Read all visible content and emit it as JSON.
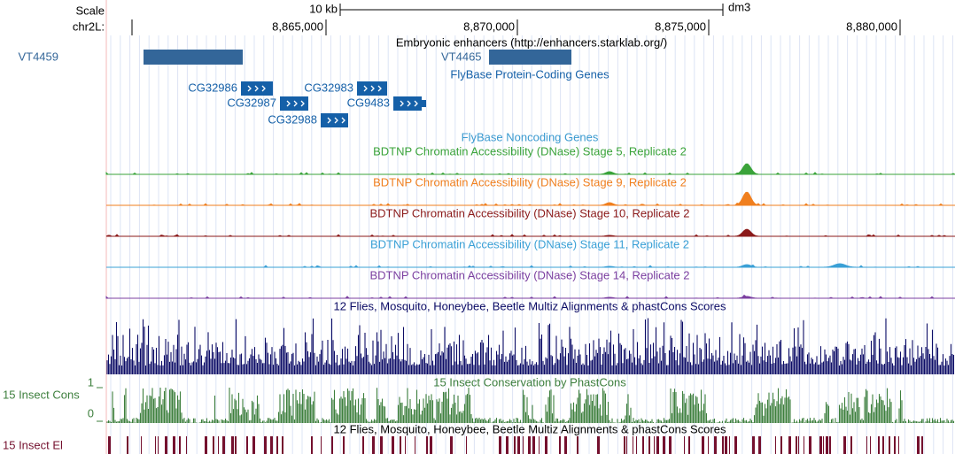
{
  "header": {
    "scale_label": "Scale",
    "scale_bar": "10 kb",
    "assembly": "dm3",
    "chrom": "chr2L:",
    "ticks": [
      {
        "value": 8865000,
        "label": "8,865,000"
      },
      {
        "value": 8870000,
        "label": "8,870,000"
      },
      {
        "value": 8875000,
        "label": "8,875,000"
      },
      {
        "value": 8880000,
        "label": "8,880,000"
      }
    ]
  },
  "tracks": {
    "enhancers": {
      "title": "Embryonic enhancers (http://enhancers.starklab.org/)",
      "color": "#336699",
      "items": [
        "VT4459",
        "VT4465"
      ]
    },
    "genes": {
      "title": "FlyBase Protein-Coding Genes",
      "color": "#1560a8",
      "items": [
        "CG32986",
        "CG32987",
        "CG32983",
        "CG9483",
        "CG32988"
      ]
    },
    "noncoding": {
      "title": "FlyBase Noncoding Genes",
      "color": "#3a9ad0"
    },
    "dnase": [
      {
        "title": "BDTNP Chromatin Accessibility (DNase) Stage 5, Replicate 2",
        "color": "#3aa33a"
      },
      {
        "title": "BDTNP Chromatin Accessibility (DNase) Stage 9, Replicate 2",
        "color": "#f07f1e"
      },
      {
        "title": "BDTNP Chromatin Accessibility (DNase) Stage 10, Replicate 2",
        "color": "#8b1a1a"
      },
      {
        "title": "BDTNP Chromatin Accessibility (DNase) Stage 11, Replicate 2",
        "color": "#3aa0d6"
      },
      {
        "title": "BDTNP Chromatin Accessibility (DNase) Stage 14, Replicate 2",
        "color": "#7b3fa0"
      }
    ],
    "multiz": {
      "title": "12 Flies, Mosquito, Honeybee, Beetle Multiz Alignments & phastCons Scores",
      "color": "#0c0c66"
    },
    "phastcons": {
      "title": "15 Insect Conservation by PhastCons",
      "label": "15 Insect Cons",
      "ylim": [
        0,
        1
      ],
      "color": "#3d7f3d"
    },
    "elements": {
      "title": "12 Flies, Mosquito, Honeybee, Beetle Multiz Alignments & phastCons Scores",
      "label": "15 Insect El",
      "color": "#74102e"
    }
  }
}
